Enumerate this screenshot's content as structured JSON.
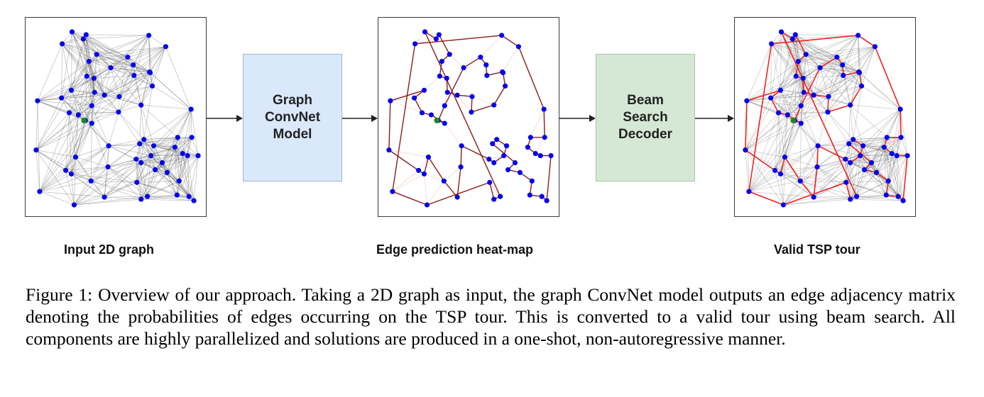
{
  "stages": {
    "gcn_label": "Graph\nConvNet\nModel",
    "beam_label": "Beam\nSearch\nDecoder"
  },
  "panels": {
    "input_label": "Input 2D graph",
    "heat_label": "Edge prediction heat-map",
    "tour_label": "Valid TSP tour"
  },
  "caption": "Figure 1: Overview of our approach. Taking a 2D graph as input, the graph ConvNet model outputs an edge adjacency matrix denoting the probabilities of edges occurring on the TSP tour. This is converted to a valid tour using beam search. All components are highly parallelized and solutions are produced in a one-shot, non-autoregressive manner.",
  "colors": {
    "node": "#0000ee",
    "depot": "#1a8a1a",
    "graph_edge": "#555555",
    "heat_edge": "#8b1a1a",
    "tour_edge": "#ee2222",
    "gcn_box": "#dae8fc",
    "beam_box": "#d5e8d4"
  }
}
